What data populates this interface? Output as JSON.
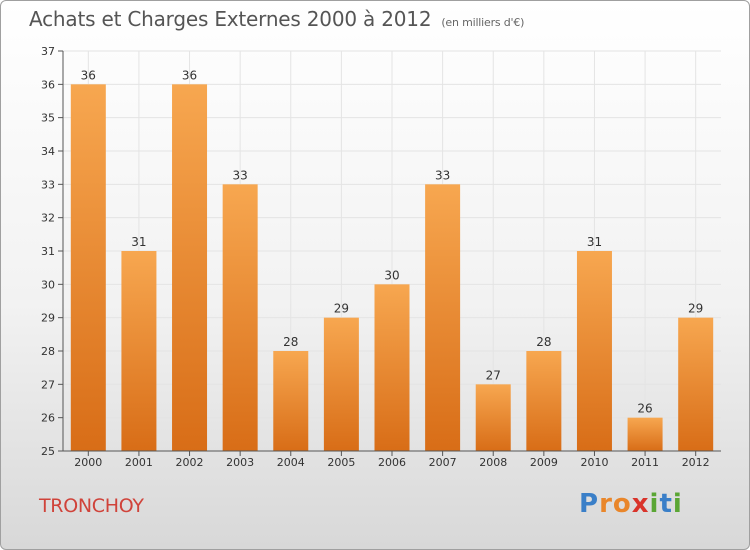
{
  "header": {
    "title": "Achats et Charges Externes 2000 à 2012",
    "unit": "(en milliers d'€)"
  },
  "footer": {
    "town": "TRONCHOY",
    "logo": {
      "text": "Proxiti",
      "letters": [
        {
          "ch": "P",
          "color": "#3a7fc8"
        },
        {
          "ch": "r",
          "color": "#e9862a"
        },
        {
          "ch": "o",
          "color": "#e9862a"
        },
        {
          "ch": "x",
          "color": "#d9342b"
        },
        {
          "ch": "i",
          "color": "#5aa634"
        },
        {
          "ch": "t",
          "color": "#3a7fc8"
        },
        {
          "ch": "i",
          "color": "#5aa634"
        }
      ]
    }
  },
  "colors": {
    "bar_top": "#f7a750",
    "bar_bottom": "#d86d17",
    "grid": "#e4e4e4"
  },
  "chart_data": {
    "type": "bar",
    "title": "Achats et Charges Externes 2000 à 2012",
    "categories": [
      "2000",
      "2001",
      "2002",
      "2003",
      "2004",
      "2005",
      "2006",
      "2007",
      "2008",
      "2009",
      "2010",
      "2011",
      "2012"
    ],
    "values": [
      36,
      31,
      36,
      33,
      28,
      29,
      30,
      33,
      27,
      28,
      31,
      26,
      29
    ],
    "ylim": [
      25,
      37
    ],
    "yticks": [
      25,
      26,
      27,
      28,
      29,
      30,
      31,
      32,
      33,
      34,
      35,
      36,
      37
    ],
    "grid": true,
    "data_labels": true
  }
}
